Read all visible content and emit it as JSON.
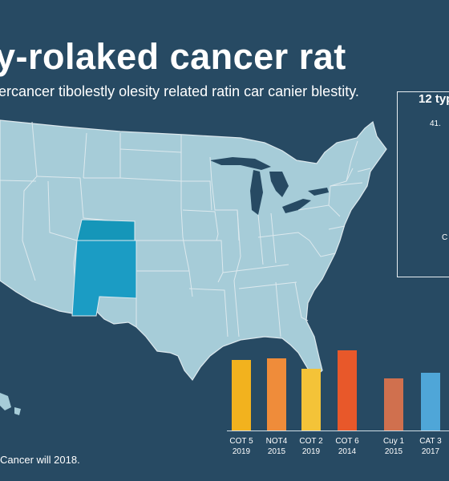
{
  "title": "y-rolaked cancer rat",
  "subtitle": "ercancer tibolestly olesity related ratin car canier blestity.",
  "side_panel": {
    "heading": "12 typ",
    "value_label": "41.",
    "marker_label": "C"
  },
  "footnote": "Cancer will 2018.",
  "colors": {
    "background": "#274a63",
    "map_land": "#a6ccd8",
    "map_border": "#dde9ee",
    "map_highlight_colorado": "#1596b9",
    "map_highlight_newmexico": "#1b9cc4"
  },
  "chart_data": {
    "type": "bar",
    "categories": [
      {
        "label_top": "COT 5",
        "label_bottom": "2019"
      },
      {
        "label_top": "NOT4",
        "label_bottom": "2015"
      },
      {
        "label_top": "COT 2",
        "label_bottom": "2019"
      },
      {
        "label_top": "COT 6",
        "label_bottom": "2014"
      },
      {
        "label_top": "Cuy 1",
        "label_bottom": "2015"
      },
      {
        "label_top": "CAT 3",
        "label_bottom": "2017"
      }
    ],
    "values": [
      88,
      90,
      77,
      100,
      65,
      72
    ],
    "bar_colors": [
      "#f2b21e",
      "#ef8c3a",
      "#f4c338",
      "#e8582a",
      "#d0704e",
      "#4fa6d8"
    ],
    "ylim": [
      0,
      100
    ],
    "grid": false,
    "legend": "none"
  }
}
